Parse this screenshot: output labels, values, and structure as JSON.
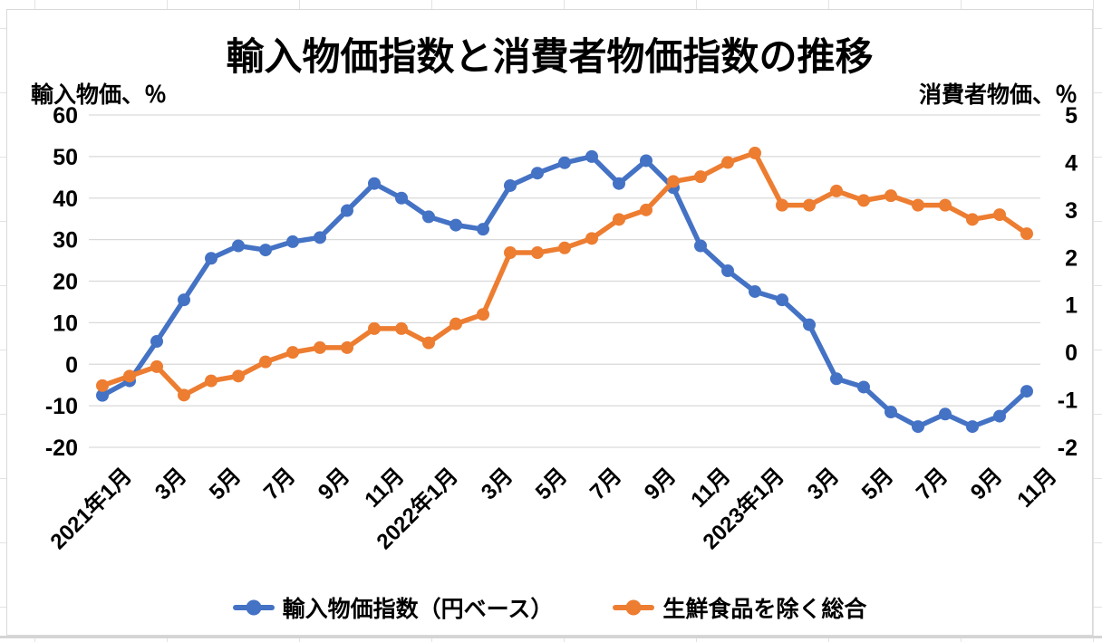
{
  "chart_data": {
    "type": "line",
    "title": "輸入物価指数と消費者物価指数の推移",
    "grid": "horizontal",
    "gridline_color": "#D9D9D9",
    "legend_position": "bottom",
    "left_axis": {
      "label": "輸入物価、％",
      "range": [
        -20,
        60
      ],
      "tick_interval": 10,
      "tick_labels": [
        "60",
        "50",
        "40",
        "30",
        "20",
        "10",
        "0",
        "-10",
        "-20"
      ]
    },
    "right_axis": {
      "label": "消費者物価、％",
      "range": [
        -2,
        5
      ],
      "tick_interval": 1,
      "tick_labels": [
        "5",
        "4",
        "3",
        "2",
        "1",
        "0",
        "-1",
        "-2"
      ]
    },
    "x_axis": {
      "n_points": 35,
      "tick_labels": [
        "2021年1月",
        "3月",
        "5月",
        "7月",
        "9月",
        "11月",
        "2022年1月",
        "3月",
        "5月",
        "7月",
        "9月",
        "11月",
        "2023年1月",
        "3月",
        "5月",
        "7月",
        "9月",
        "11月"
      ],
      "tick_indices": [
        0,
        2,
        4,
        6,
        8,
        10,
        12,
        14,
        16,
        18,
        20,
        22,
        24,
        26,
        28,
        30,
        32,
        34
      ]
    },
    "series": [
      {
        "name": "輸入物価指数（円ベース）",
        "yaxis": "left",
        "color": "#4472C4",
        "values": [
          -7.5,
          -4,
          5.5,
          15.5,
          25.5,
          28.5,
          27.5,
          29.5,
          30.5,
          37,
          43.5,
          40,
          35.5,
          33.5,
          32.5,
          43,
          46,
          48.5,
          50,
          43.5,
          49,
          42.5,
          28.5,
          22.5,
          17.5,
          15.5,
          9.5,
          -3.5,
          -5.5,
          -11.5,
          -15,
          -12,
          -15,
          -12.5,
          -6.5
        ]
      },
      {
        "name": "生鮮食品を除く総合",
        "yaxis": "right",
        "color": "#ED7D31",
        "values": [
          -0.7,
          -0.5,
          -0.3,
          -0.9,
          -0.6,
          -0.5,
          -0.2,
          0.0,
          0.1,
          0.1,
          0.5,
          0.5,
          0.2,
          0.6,
          0.8,
          2.1,
          2.1,
          2.2,
          2.4,
          2.8,
          3.0,
          3.6,
          3.7,
          4.0,
          4.2,
          3.1,
          3.1,
          3.4,
          3.2,
          3.3,
          3.1,
          3.1,
          2.8,
          2.9,
          2.5
        ]
      }
    ]
  }
}
